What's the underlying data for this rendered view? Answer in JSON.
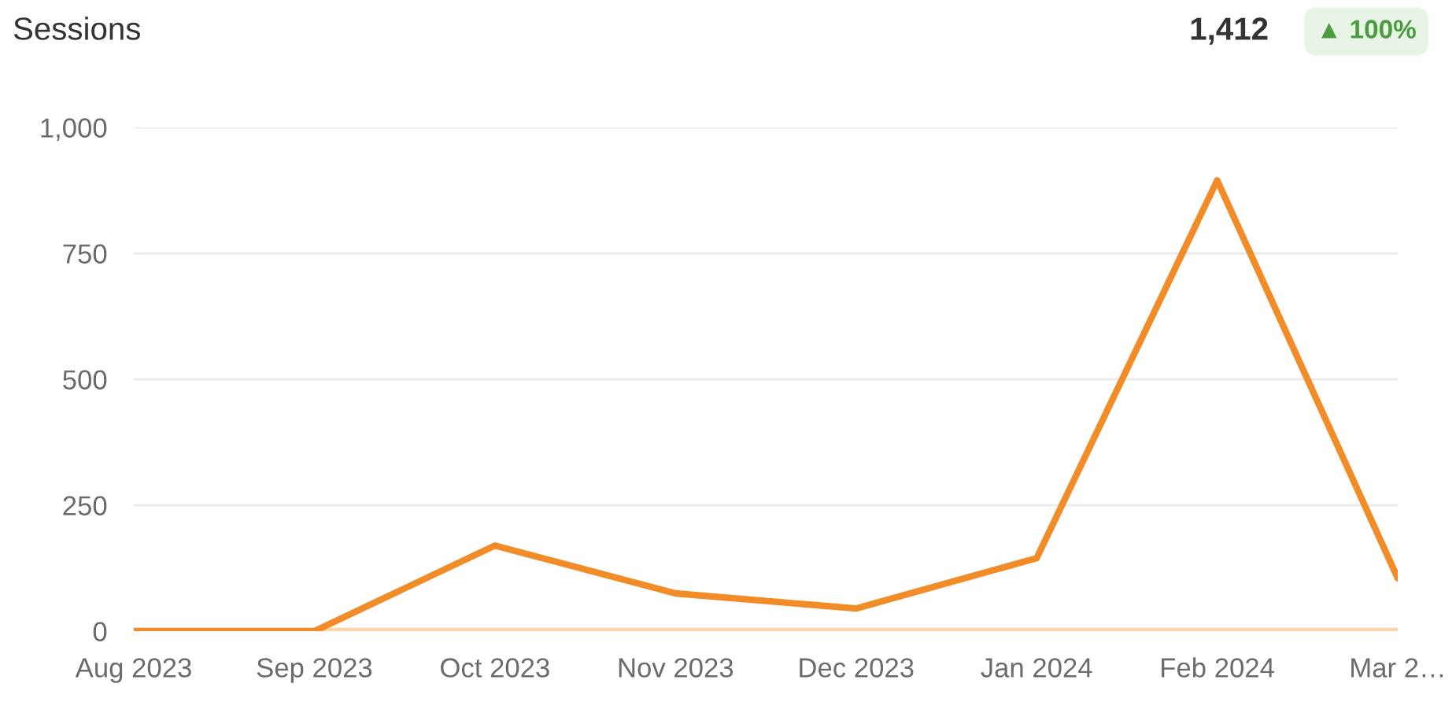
{
  "chart_data": {
    "type": "line",
    "title": "Sessions",
    "annotations": [
      "1,412",
      "▲ 100%"
    ],
    "categories": [
      "Aug 2023",
      "Sep 2023",
      "Oct 2023",
      "Nov 2023",
      "Dec 2023",
      "Jan 2024",
      "Feb 2024",
      "Mar 2…"
    ],
    "series": [
      {
        "color": "#fdd3a8",
        "values": [
          0,
          0,
          0,
          0,
          0,
          0,
          0,
          0
        ]
      },
      {
        "color": "#f28c28",
        "values": [
          0,
          0,
          170,
          75,
          45,
          145,
          895,
          105
        ]
      }
    ],
    "ylim": [
      0,
      1000
    ],
    "yticks": [
      0,
      250,
      500,
      750,
      {
        "value": 1000,
        "label": "1,000"
      }
    ],
    "grid": "y",
    "legend": false,
    "marker": "none",
    "line_style": "solid"
  }
}
